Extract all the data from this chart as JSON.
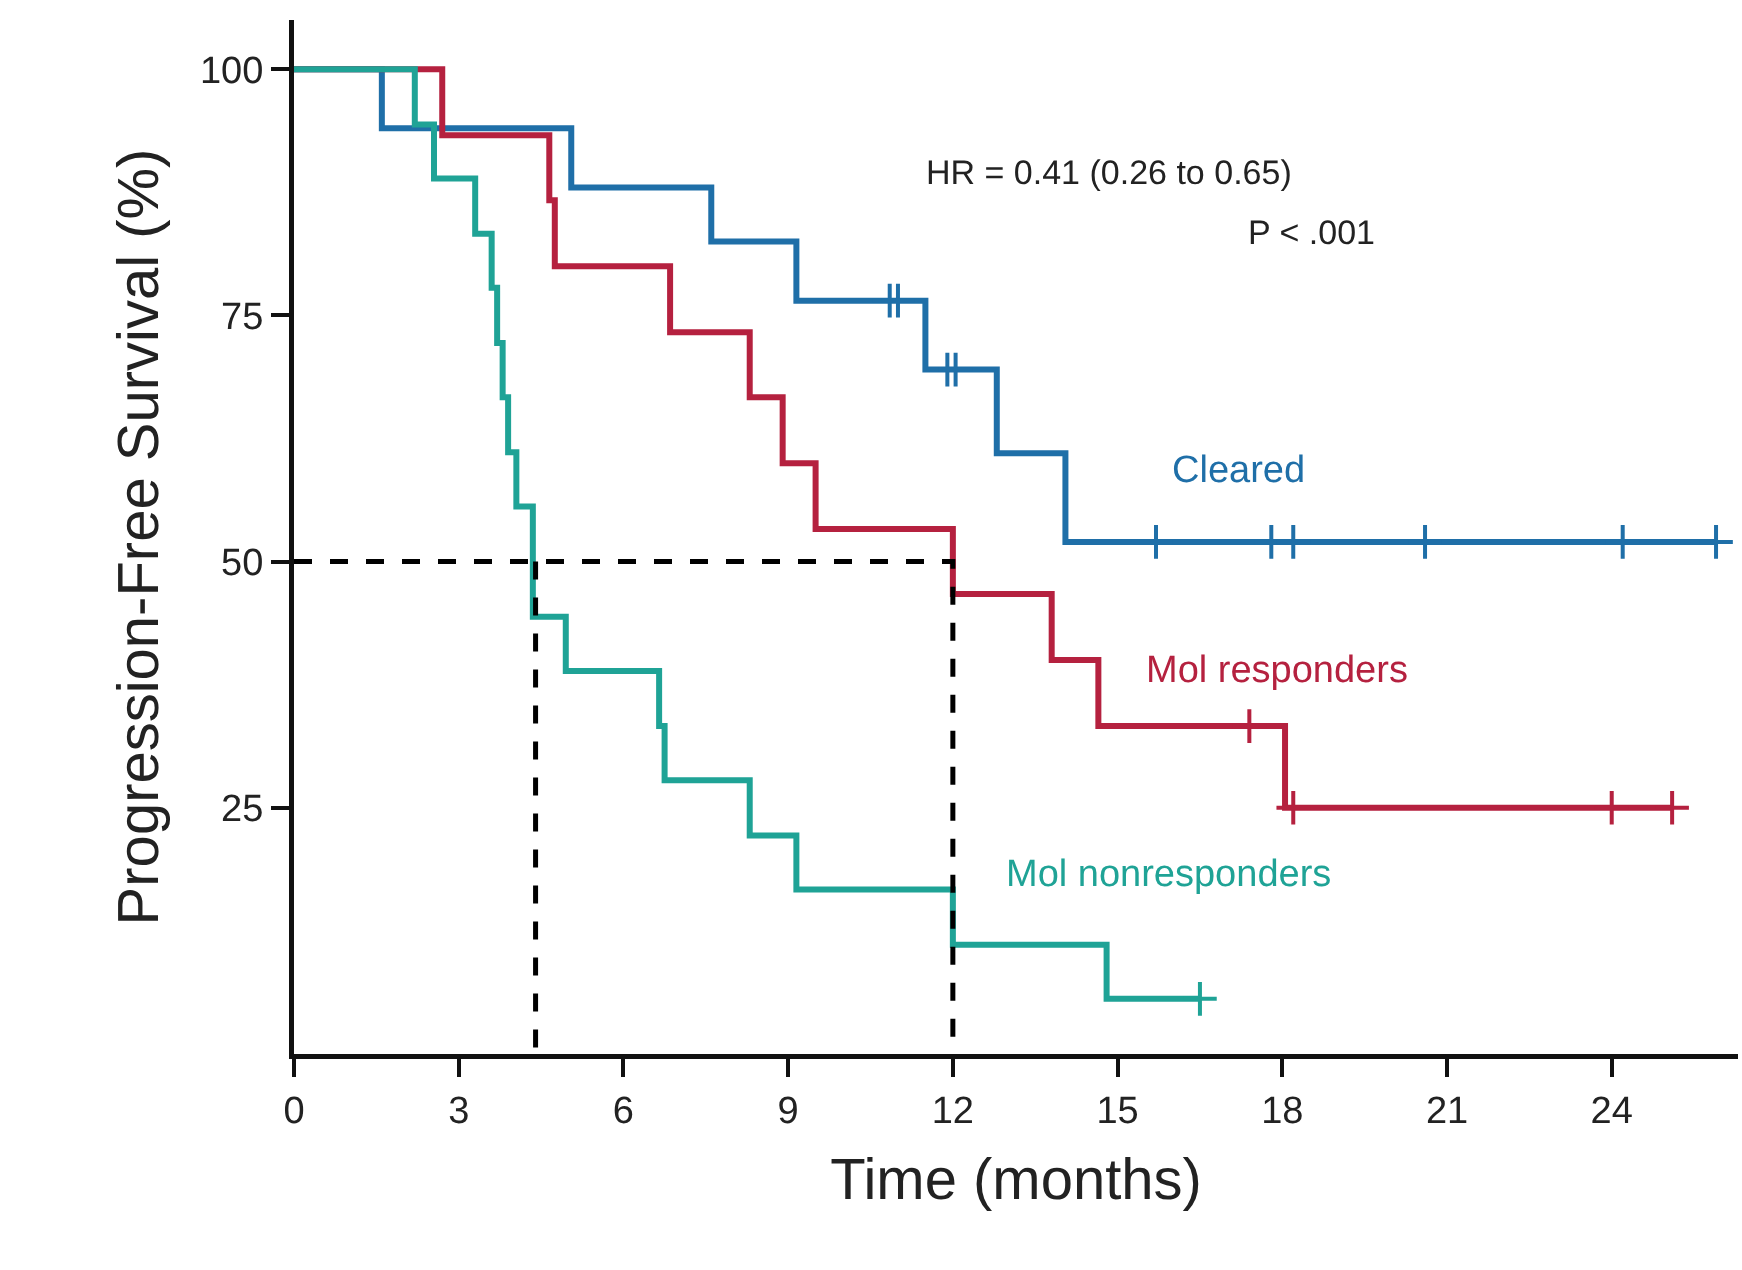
{
  "chart_data": {
    "type": "step",
    "xlabel": "Time (months)",
    "ylabel": "Progression-Free Survival (%)",
    "xlim": [
      0,
      26.3
    ],
    "xticks": [
      0,
      3,
      6,
      9,
      12,
      15,
      18,
      21,
      24
    ],
    "ylim": [
      0,
      105
    ],
    "yticks": [
      25,
      50,
      75,
      100
    ],
    "grid": false,
    "legend": false,
    "annotations": [
      "HR = 0.41 (0.26 to 0.65)",
      "P < .001"
    ],
    "series": [
      {
        "name": "Cleared",
        "color": "#1f6fa8",
        "x": [
          0,
          1.6,
          5.05,
          7.6,
          9.15,
          11.5,
          12.8,
          14.05,
          25.9
        ],
        "values": [
          100,
          94,
          88,
          82.5,
          76.5,
          69.5,
          61,
          52,
          52
        ]
      },
      {
        "name": "Mol responders",
        "color": "#b5213f",
        "x": [
          0,
          2.7,
          4.65,
          4.75,
          6.85,
          8.3,
          8.9,
          9.5,
          12,
          13.8,
          14.65,
          18.05,
          25.1
        ],
        "values": [
          100,
          93.3,
          86.7,
          80,
          73.3,
          66.7,
          60,
          53.3,
          46.7,
          40,
          33.3,
          25,
          25
        ]
      },
      {
        "name": "Mol nonresponders",
        "color": "#1fa396",
        "x": [
          0,
          2.2,
          2.55,
          3.3,
          3.6,
          3.7,
          3.8,
          3.9,
          4.05,
          4.35,
          4.95,
          6.65,
          6.75,
          8.3,
          9.15,
          12,
          14.8,
          16.5
        ],
        "values": [
          100,
          94.4,
          88.9,
          83.3,
          77.8,
          72.2,
          66.7,
          61.1,
          55.6,
          44.4,
          38.9,
          33.3,
          27.8,
          22.2,
          16.7,
          11.1,
          5.6,
          5.6
        ]
      },
      {
        "type": "scatter",
        "marker": "cross",
        "color": "#1f6fa8",
        "x": [
          10.85,
          11.0,
          11.9,
          12.05,
          15.7,
          17.8,
          18.2,
          20.6,
          24.2,
          25.9
        ],
        "values": [
          76.5,
          76.5,
          69.5,
          69.5,
          52,
          52,
          52,
          52,
          52,
          52
        ]
      },
      {
        "type": "scatter",
        "marker": "cross",
        "color": "#b5213f",
        "x": [
          17.4,
          18.2,
          24,
          25.1
        ],
        "values": [
          33.3,
          25,
          25,
          25
        ]
      },
      {
        "type": "scatter",
        "marker": "cross",
        "color": "#1fa396",
        "x": [
          16.5
        ],
        "values": [
          5.6
        ]
      },
      {
        "type": "line",
        "line_style": "dashed",
        "color": "#000000",
        "x": [
          0,
          12,
          12
        ],
        "values": [
          50,
          50,
          0
        ]
      },
      {
        "type": "line",
        "line_style": "dashed",
        "color": "#000000",
        "x": [
          4.4,
          4.4
        ],
        "values": [
          50,
          0
        ]
      }
    ]
  }
}
